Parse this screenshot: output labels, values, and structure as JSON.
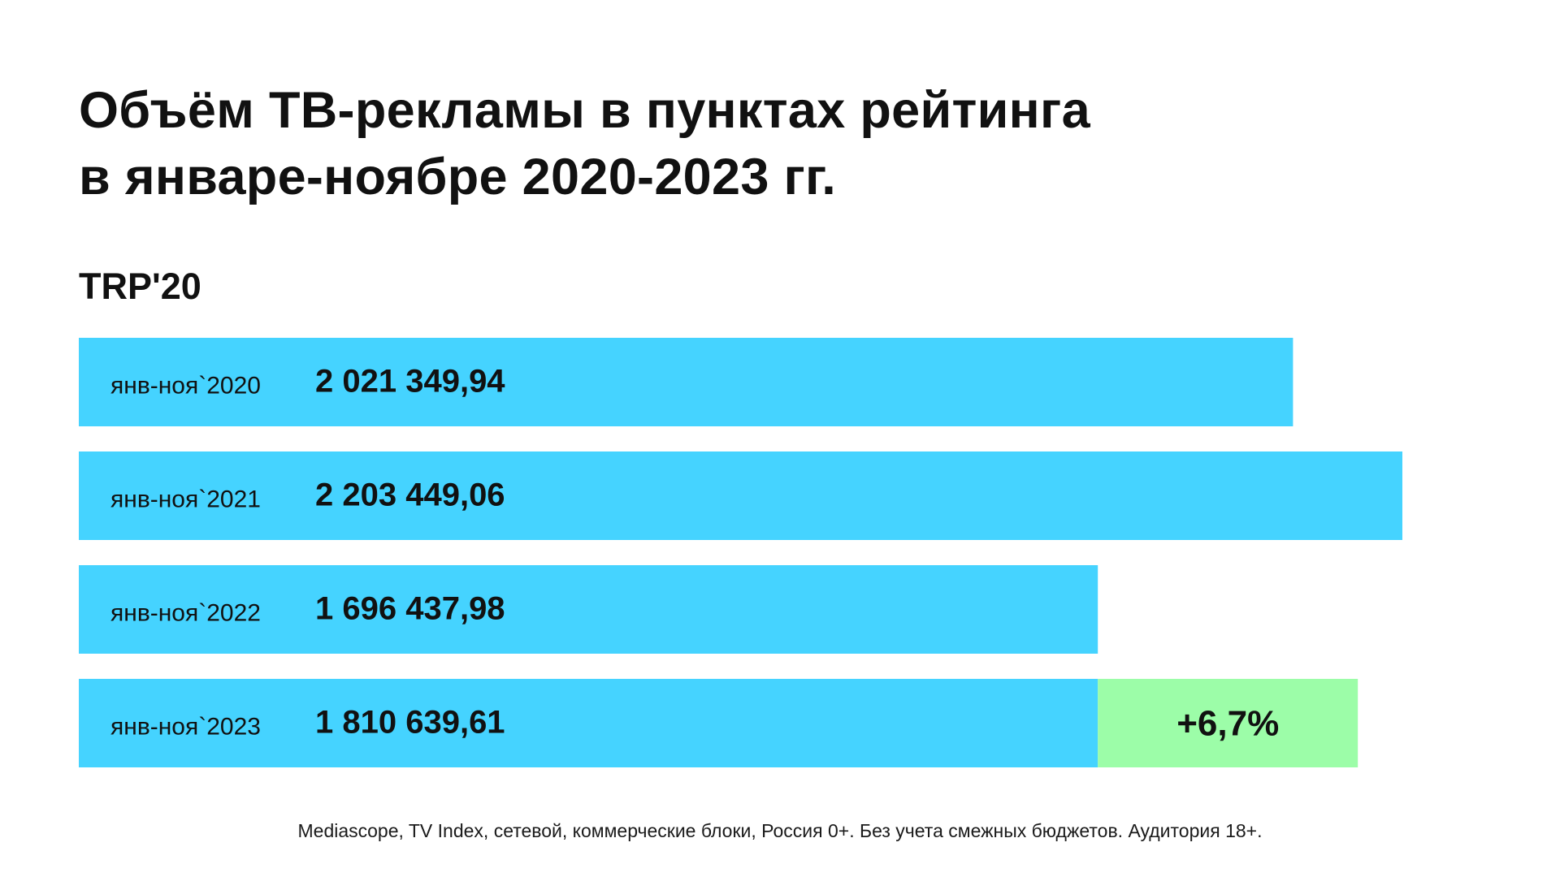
{
  "title_line1": "Объём ТВ-рекламы в пунктах рейтинга",
  "title_line2": "в январе-ноябре 2020-2023 гг.",
  "unit_label": "TRP'20",
  "source_note": "Mediascope, TV Index, сетевой, коммерческие блоки, Россия 0+. Без учета смежных бюджетов. Аудитория 18+.",
  "colors": {
    "bar": "#45d3ff",
    "growth": "#9cfda8",
    "text": "#111111"
  },
  "chart_data": {
    "type": "bar",
    "orientation": "horizontal",
    "title": "Объём ТВ-рекламы в пунктах рейтинга в январе-ноябре 2020-2023 гг.",
    "ylabel": "TRP'20",
    "categories": [
      "янв-ноя`2020",
      "янв-ноя`2021",
      "янв-ноя`2022",
      "янв-ноя`2023"
    ],
    "values": [
      2021349.94,
      2203449.06,
      1696437.98,
      1810639.61
    ],
    "value_labels": [
      "2 021 349,94",
      "2 203 449,06",
      "1 696 437,98",
      "1 810 639,61"
    ],
    "growth": {
      "category": "янв-ноя`2023",
      "compared_to": "янв-ноя`2022",
      "label": "+6,7%"
    }
  }
}
